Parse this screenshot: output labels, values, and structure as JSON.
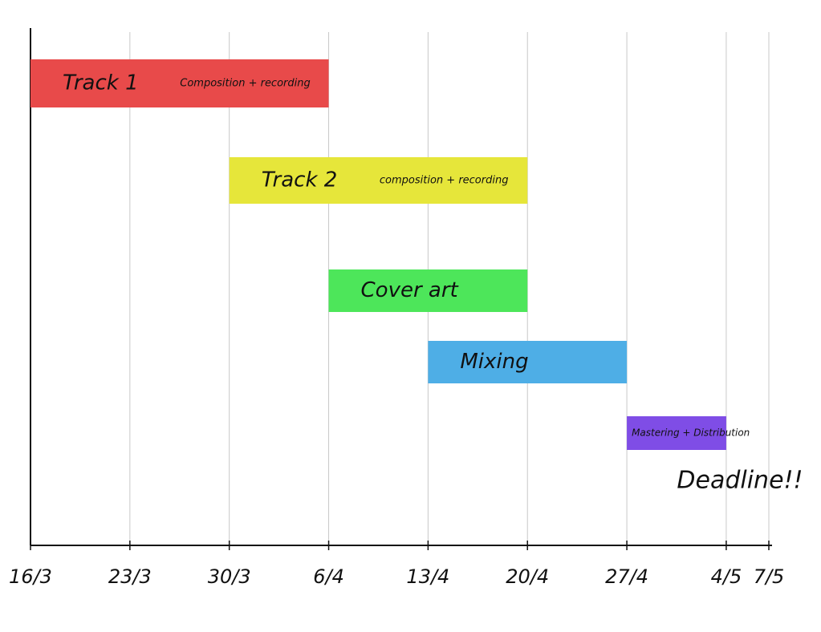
{
  "chart_data": {
    "type": "gantt",
    "xlim": [
      0,
      52
    ],
    "xticks": [
      {
        "value": 0,
        "label": "16/3"
      },
      {
        "value": 7,
        "label": "23/3"
      },
      {
        "value": 14,
        "label": "30/3"
      },
      {
        "value": 21,
        "label": "6/4"
      },
      {
        "value": 28,
        "label": "13/4"
      },
      {
        "value": 35,
        "label": "20/4"
      },
      {
        "value": 42,
        "label": "27/4"
      },
      {
        "value": 49,
        "label": "4/5"
      },
      {
        "value": 52,
        "label": "7/5"
      }
    ],
    "grid": true,
    "tasks": [
      {
        "name": "Track 1",
        "note": "Composition + recording",
        "start": 0,
        "end": 21,
        "color": "#e84a4a"
      },
      {
        "name": "Track 2",
        "note": "composition + recording",
        "start": 14,
        "end": 35,
        "color": "#e6e63a"
      },
      {
        "name": "Cover art",
        "start": 21,
        "end": 35,
        "color": "#4de65a"
      },
      {
        "name": "Mixing",
        "start": 28,
        "end": 42,
        "color": "#4eaee6"
      },
      {
        "name": "Mastering + Distribution",
        "start": 42,
        "end": 49,
        "color": "#7f4de6"
      }
    ],
    "annotation": "Deadline!!"
  }
}
